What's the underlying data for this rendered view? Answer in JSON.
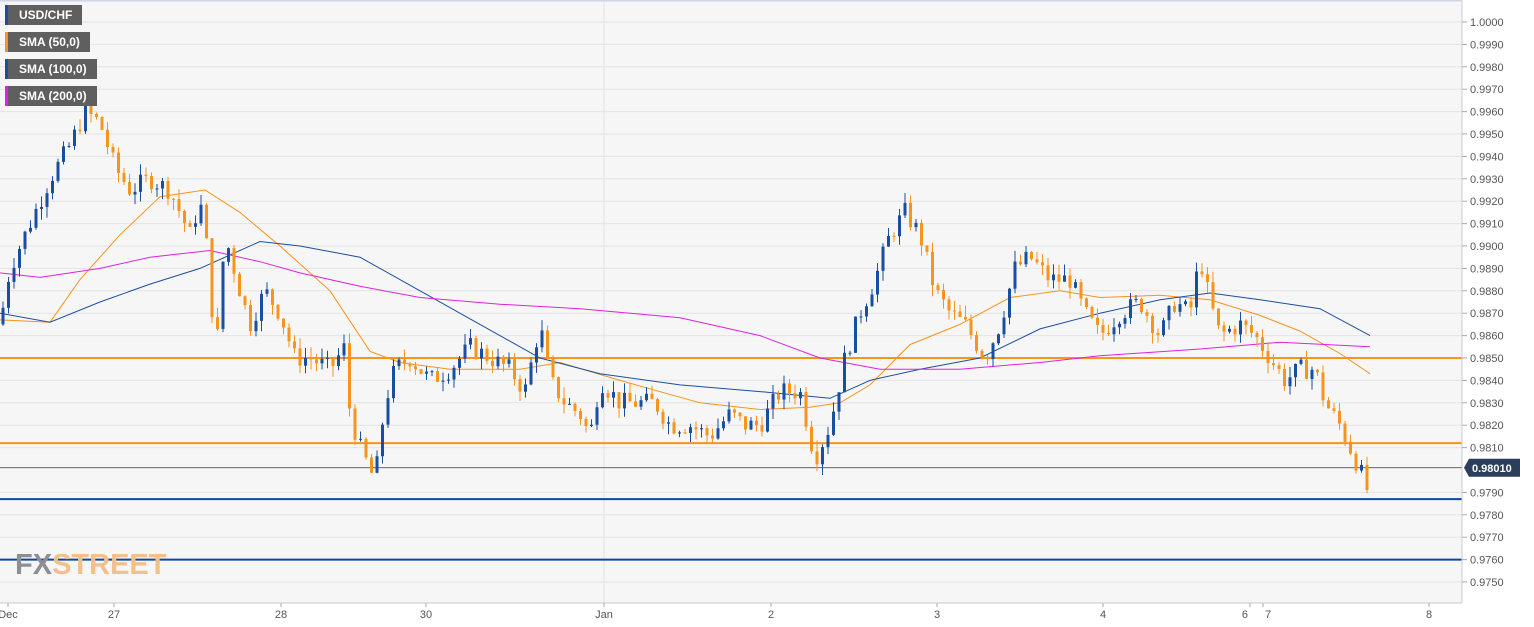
{
  "chart_data": {
    "type": "candlestick",
    "title": "USD/CHF",
    "legend": [
      {
        "label": "USD/CHF",
        "color": "#1a4fa0"
      },
      {
        "label": "SMA (50,0)",
        "color": "#f7941d"
      },
      {
        "label": "SMA (100,0)",
        "color": "#1a4fa0"
      },
      {
        "label": "SMA (200,0)",
        "color": "#e020e0"
      }
    ],
    "ylim": [
      0.9741,
      1.001
    ],
    "y_ticks": [
      "1.0000",
      "0.9990",
      "0.9980",
      "0.9970",
      "0.9960",
      "0.9950",
      "0.9940",
      "0.9930",
      "0.9920",
      "0.9910",
      "0.9900",
      "0.9890",
      "0.9880",
      "0.9870",
      "0.9860",
      "0.9850",
      "0.9840",
      "0.9830",
      "0.9820",
      "0.9810",
      "0.9790",
      "0.9780",
      "0.9770",
      "0.9760",
      "0.9750"
    ],
    "x_ticks": [
      {
        "label": "Dec",
        "t": 0.8
      },
      {
        "label": "27",
        "t": 11.4
      },
      {
        "label": "28",
        "t": 28.1
      },
      {
        "label": "30",
        "t": 42.6
      },
      {
        "label": "Jan",
        "t": 60.4
      },
      {
        "label": "2",
        "t": 77.1
      },
      {
        "label": "3",
        "t": 93.7
      },
      {
        "label": "4",
        "t": 110.3
      },
      {
        "label": "6",
        "t": 125
      },
      {
        "label": "7",
        "t": 126.3
      },
      {
        "label": "8",
        "t": 142.9
      }
    ],
    "xlim": [
      0,
      146.2
    ],
    "current_price": "0.98010",
    "current_value": 0.9801,
    "colors": {
      "up": "#1a4fa0",
      "down": "#f7941d",
      "sma50": "#f7941d",
      "sma100": "#1a4fa0",
      "sma200": "#e020e0"
    },
    "levels": [
      {
        "value": 0.985,
        "color": "#f7941d"
      },
      {
        "value": 0.9812,
        "color": "#f7941d"
      },
      {
        "value": 0.9787,
        "color": "#0d47a1"
      },
      {
        "value": 0.976,
        "color": "#0d47a1"
      }
    ],
    "price_path": [
      [
        0,
        0.9865
      ],
      [
        1,
        0.989
      ],
      [
        3,
        0.991
      ],
      [
        5,
        0.993
      ],
      [
        7,
        0.9945
      ],
      [
        8.5,
        0.996
      ],
      [
        10,
        0.9955
      ],
      [
        11.5,
        0.9935
      ],
      [
        13,
        0.9925
      ],
      [
        15,
        0.993
      ],
      [
        17,
        0.9925
      ],
      [
        19,
        0.9905
      ],
      [
        20,
        0.992
      ],
      [
        21,
        0.989
      ],
      [
        21.5,
        0.9845
      ],
      [
        22.5,
        0.9905
      ],
      [
        24,
        0.988
      ],
      [
        25,
        0.9865
      ],
      [
        26.5,
        0.988
      ],
      [
        28,
        0.987
      ],
      [
        29.5,
        0.985
      ],
      [
        31,
        0.985
      ],
      [
        33,
        0.9845
      ],
      [
        34.5,
        0.9855
      ],
      [
        35,
        0.9825
      ],
      [
        36,
        0.981
      ],
      [
        37.5,
        0.9795
      ],
      [
        38.5,
        0.983
      ],
      [
        39.5,
        0.9845
      ],
      [
        41,
        0.985
      ],
      [
        43,
        0.984
      ],
      [
        45,
        0.9845
      ],
      [
        47,
        0.9855
      ],
      [
        49,
        0.985
      ],
      [
        51,
        0.9845
      ],
      [
        52.5,
        0.9835
      ],
      [
        54,
        0.9865
      ],
      [
        55,
        0.984
      ],
      [
        56.5,
        0.983
      ],
      [
        58,
        0.9825
      ],
      [
        59,
        0.9815
      ],
      [
        60,
        0.984
      ],
      [
        62,
        0.983
      ],
      [
        64,
        0.983
      ],
      [
        65.5,
        0.983
      ],
      [
        67,
        0.982
      ],
      [
        69,
        0.982
      ],
      [
        71,
        0.9815
      ],
      [
        73,
        0.9825
      ],
      [
        74.5,
        0.982
      ],
      [
        76,
        0.982
      ],
      [
        78,
        0.9835
      ],
      [
        80,
        0.9835
      ],
      [
        81.5,
        0.9805
      ],
      [
        83,
        0.982
      ],
      [
        84.5,
        0.985
      ],
      [
        86,
        0.987
      ],
      [
        87.5,
        0.9885
      ],
      [
        89,
        0.9905
      ],
      [
        90.5,
        0.9915
      ],
      [
        92,
        0.9905
      ],
      [
        93.5,
        0.988
      ],
      [
        95,
        0.987
      ],
      [
        96.5,
        0.9865
      ],
      [
        98.5,
        0.985
      ],
      [
        100,
        0.9865
      ],
      [
        101.5,
        0.989
      ],
      [
        103,
        0.9895
      ],
      [
        105,
        0.9885
      ],
      [
        107,
        0.9885
      ],
      [
        108.5,
        0.987
      ],
      [
        110,
        0.986
      ],
      [
        112,
        0.987
      ],
      [
        114,
        0.9875
      ],
      [
        116,
        0.986
      ],
      [
        117.5,
        0.9875
      ],
      [
        119,
        0.987
      ],
      [
        120,
        0.9895
      ],
      [
        121,
        0.9875
      ],
      [
        122,
        0.986
      ],
      [
        124,
        0.9865
      ],
      [
        125.5,
        0.986
      ],
      [
        127,
        0.985
      ],
      [
        128.5,
        0.984
      ],
      [
        130,
        0.9845
      ],
      [
        131.5,
        0.9845
      ],
      [
        132.5,
        0.983
      ],
      [
        134,
        0.982
      ],
      [
        135,
        0.981
      ],
      [
        136,
        0.98
      ],
      [
        136.8,
        0.979
      ],
      [
        137,
        0.9801
      ]
    ],
    "sma50": [
      [
        0,
        0.9867
      ],
      [
        5,
        0.9866
      ],
      [
        8,
        0.9885
      ],
      [
        12,
        0.9905
      ],
      [
        16,
        0.9922
      ],
      [
        20.5,
        0.9925
      ],
      [
        24,
        0.9915
      ],
      [
        28,
        0.99
      ],
      [
        33,
        0.988
      ],
      [
        37,
        0.9853
      ],
      [
        40,
        0.9848
      ],
      [
        45,
        0.9845
      ],
      [
        52,
        0.9845
      ],
      [
        56,
        0.9848
      ],
      [
        62,
        0.984
      ],
      [
        70,
        0.983
      ],
      [
        76,
        0.9827
      ],
      [
        81,
        0.9828
      ],
      [
        84,
        0.983
      ],
      [
        87,
        0.9838
      ],
      [
        91,
        0.9856
      ],
      [
        96,
        0.9865
      ],
      [
        101,
        0.9877
      ],
      [
        106,
        0.988
      ],
      [
        110,
        0.9877
      ],
      [
        116,
        0.9878
      ],
      [
        121,
        0.9876
      ],
      [
        126,
        0.9869
      ],
      [
        130,
        0.9862
      ],
      [
        134,
        0.9852
      ],
      [
        137,
        0.9843
      ]
    ],
    "sma100": [
      [
        0,
        0.987
      ],
      [
        5,
        0.9866
      ],
      [
        10,
        0.9875
      ],
      [
        15,
        0.9883
      ],
      [
        20,
        0.989
      ],
      [
        26,
        0.9902
      ],
      [
        30,
        0.99
      ],
      [
        36,
        0.9895
      ],
      [
        42,
        0.988
      ],
      [
        48,
        0.9865
      ],
      [
        54,
        0.985
      ],
      [
        60,
        0.9843
      ],
      [
        68,
        0.9838
      ],
      [
        76,
        0.9835
      ],
      [
        83,
        0.9832
      ],
      [
        87,
        0.984
      ],
      [
        92,
        0.9845
      ],
      [
        98,
        0.985
      ],
      [
        104,
        0.9863
      ],
      [
        110,
        0.987
      ],
      [
        116,
        0.9876
      ],
      [
        121,
        0.9879
      ],
      [
        126,
        0.9876
      ],
      [
        132,
        0.9872
      ],
      [
        137,
        0.986
      ]
    ],
    "sma200": [
      [
        0,
        0.9888
      ],
      [
        4,
        0.9886
      ],
      [
        10,
        0.989
      ],
      [
        15,
        0.9895
      ],
      [
        21,
        0.9898
      ],
      [
        26,
        0.9893
      ],
      [
        30,
        0.9888
      ],
      [
        36,
        0.9882
      ],
      [
        42,
        0.9877
      ],
      [
        50,
        0.9874
      ],
      [
        58,
        0.9872
      ],
      [
        68,
        0.9868
      ],
      [
        76,
        0.986
      ],
      [
        82,
        0.985
      ],
      [
        88,
        0.9845
      ],
      [
        96,
        0.9845
      ],
      [
        104,
        0.9848
      ],
      [
        110,
        0.9851
      ],
      [
        120,
        0.9854
      ],
      [
        128,
        0.9857
      ],
      [
        137,
        0.9855
      ]
    ]
  },
  "watermark": {
    "part1": "FX",
    "part2": "STREET"
  }
}
